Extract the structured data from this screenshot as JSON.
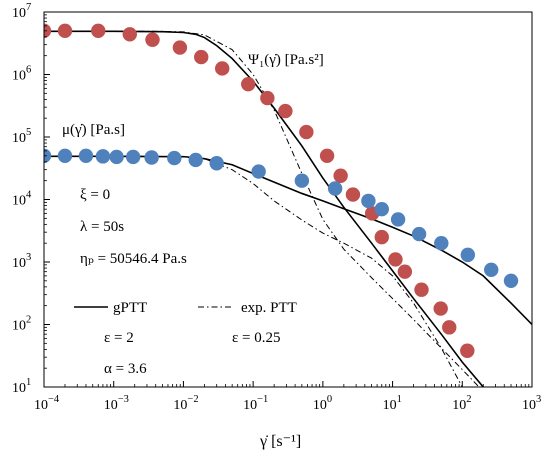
{
  "chart_data": {
    "type": "scatter",
    "x_scale": "log",
    "y_scale": "log",
    "xlim": [
      0.0001,
      1000
    ],
    "ylim": [
      10,
      10000000
    ],
    "xlabel": "γ̇ [s⁻¹]",
    "ylabel": "",
    "grid": false,
    "x_ticks": [
      {
        "mantissa": "10",
        "exp": "−4"
      },
      {
        "mantissa": "10",
        "exp": "−3"
      },
      {
        "mantissa": "10",
        "exp": "−2"
      },
      {
        "mantissa": "10",
        "exp": "−1"
      },
      {
        "mantissa": "10",
        "exp": "0"
      },
      {
        "mantissa": "10",
        "exp": "1"
      },
      {
        "mantissa": "10",
        "exp": "2"
      },
      {
        "mantissa": "10",
        "exp": "3"
      }
    ],
    "y_ticks": [
      {
        "mantissa": "10",
        "exp": "1"
      },
      {
        "mantissa": "10",
        "exp": "2"
      },
      {
        "mantissa": "10",
        "exp": "3"
      },
      {
        "mantissa": "10",
        "exp": "4"
      },
      {
        "mantissa": "10",
        "exp": "5"
      },
      {
        "mantissa": "10",
        "exp": "6"
      },
      {
        "mantissa": "10",
        "exp": "7"
      }
    ],
    "series": [
      {
        "label": "Ψ₁(γ̇) [Pa.s²]",
        "kind": "points",
        "color": "#c0504d",
        "x": [
          0.0001,
          0.0002,
          0.0006,
          0.0017,
          0.0036,
          0.0089,
          0.018,
          0.036,
          0.085,
          0.16,
          0.29,
          0.58,
          1.15,
          1.8,
          2.7,
          5.1,
          7.0,
          11.0,
          15.0,
          26.0,
          49.0,
          65.0,
          118.0
        ],
        "y": [
          5000000,
          5000000,
          5000000,
          4400000,
          3600000,
          2700000,
          1900000,
          1250000,
          700000,
          420000,
          260000,
          120000,
          50000,
          24000,
          12000,
          6000,
          2500,
          1100,
          700,
          360,
          180,
          90,
          38
        ]
      },
      {
        "label": "μ(γ̇) [Pa.s]",
        "kind": "points",
        "color": "#4f81bd",
        "x": [
          0.0001,
          0.0002,
          0.0004,
          0.0007,
          0.0011,
          0.0019,
          0.0035,
          0.0074,
          0.015,
          0.03,
          0.12,
          0.5,
          1.5,
          4.5,
          7.0,
          12.0,
          24.0,
          50.0,
          120.0,
          260.0,
          500.0
        ],
        "y": [
          50000,
          50000,
          50000,
          49000,
          48000,
          48000,
          47000,
          46000,
          43000,
          38000,
          28000,
          20000,
          15000,
          9500,
          7000,
          4800,
          2800,
          2000,
          1300,
          750,
          500
        ]
      },
      {
        "label": "gPTT Ψ₁",
        "kind": "line",
        "style": "solid",
        "x": [
          0.0001,
          0.001,
          0.005,
          0.01,
          0.015,
          0.02,
          0.03,
          0.05,
          0.1,
          0.2,
          0.5,
          1,
          2,
          5,
          10,
          20,
          50,
          100,
          200,
          250
        ],
        "y": [
          4900000,
          4900000,
          4850000,
          4700000,
          4400000,
          3900000,
          2900000,
          1800000,
          780000,
          290000,
          72000,
          22000,
          7500,
          2000,
          720,
          260,
          70,
          25,
          10,
          6
        ]
      },
      {
        "label": "exp. PTT Ψ₁",
        "kind": "line",
        "style": "dashdot",
        "x": [
          0.0001,
          0.001,
          0.005,
          0.01,
          0.02,
          0.05,
          0.1,
          0.2,
          0.5,
          1,
          2,
          5,
          10,
          20,
          50,
          100,
          200,
          300
        ],
        "y": [
          4950000,
          4950000,
          4900000,
          4800000,
          4300000,
          2500000,
          1000000,
          270000,
          26000,
          4800,
          1600,
          560,
          260,
          120,
          42,
          19,
          8.5,
          5
        ]
      },
      {
        "label": "gPTT μ",
        "kind": "line",
        "style": "solid",
        "x": [
          0.0001,
          0.001,
          0.01,
          0.02,
          0.05,
          0.1,
          0.2,
          0.5,
          1,
          2,
          5,
          10,
          20,
          50,
          100,
          200,
          500,
          1000
        ],
        "y": [
          49000,
          49000,
          48500,
          45000,
          36000,
          26000,
          19000,
          12500,
          9500,
          7100,
          4900,
          3600,
          2600,
          1550,
          1000,
          600,
          220,
          100
        ]
      },
      {
        "label": "exp. PTT μ",
        "kind": "line",
        "style": "dashdot",
        "x": [
          0.0001,
          0.001,
          0.01,
          0.02,
          0.05,
          0.1,
          0.2,
          0.5,
          1,
          2,
          5,
          10,
          20,
          50,
          100
        ],
        "y": [
          49500,
          49500,
          48500,
          45000,
          30000,
          18000,
          9500,
          4700,
          2900,
          2000,
          1150,
          600,
          220,
          42,
          10
        ]
      }
    ],
    "annotations": {
      "psi_label": "Ψ₁(γ̇) [Pa.s²]",
      "mu_label": "μ(γ̇) [Pa.s]",
      "xi": "ξ = 0",
      "lambda": "λ = 50s",
      "eta_p": "ηₚ = 50546.4 Pa.s"
    },
    "legend": {
      "placement": "bottom-left",
      "gptt_label": "gPTT",
      "gptt_param1": "ε = 2",
      "gptt_param2": "α = 3.6",
      "exp_label": "exp. PTT",
      "exp_param1": "ε = 0.25"
    }
  }
}
